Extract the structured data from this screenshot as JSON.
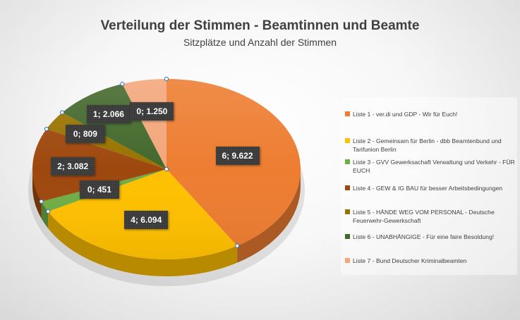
{
  "chart_data": {
    "type": "pie",
    "title": "Verteilung der Stimmen - Beamtinnen und Beamte",
    "subtitle": "Sitzplätze und Anzahl der Stimmen",
    "legend_position": "right",
    "series": [
      {
        "name": "Liste 1 - ver.di und GDP - Wir für Euch!",
        "seats": 6,
        "votes": 9622,
        "label": "6; 9.622",
        "color": "#ED7D31"
      },
      {
        "name": "Liste 2 - Gemeinsam für Berlin - dbb Beamtenbund und Tarifunion Berlin",
        "seats": 4,
        "votes": 6094,
        "label": "4; 6.094",
        "color": "#FFC000"
      },
      {
        "name": "Liste 3 - GVV  Gewerksachaft Verwaltung und Verkehr - FÜR EUCH",
        "seats": 0,
        "votes": 451,
        "label": "0; 451",
        "color": "#70AD47"
      },
      {
        "name": "Liste 4 - GEW & IG BAU für besser Arbeitsbedingungen",
        "seats": 2,
        "votes": 3082,
        "label": "2; 3.082",
        "color": "#9E480E"
      },
      {
        "name": "Liste 5 - HÄNDE WEG VOM PERSONAL - Deutsche Feuerwehr-Gewerkschaft",
        "seats": 0,
        "votes": 809,
        "label": "0; 809",
        "color": "#997300"
      },
      {
        "name": "Liste 6 - UNABHÄNGIGE - Für eine faire Besoldung!",
        "seats": 1,
        "votes": 2066,
        "label": "1; 2.066",
        "color": "#43682B"
      },
      {
        "name": "Liste 7 - Bund Deutscher Kriminalbeamten",
        "seats": 0,
        "votes": 1250,
        "label": "0; 1.250",
        "color": "#F4A67A"
      }
    ]
  }
}
